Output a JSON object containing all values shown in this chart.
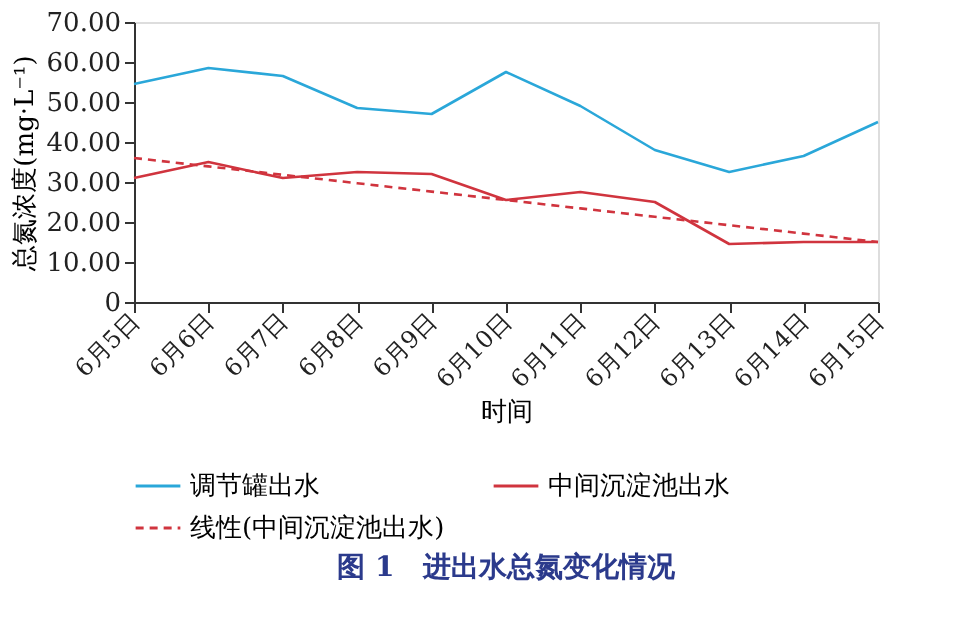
{
  "chart_data": {
    "type": "line",
    "title": "图 1　进出水总氮变化情况",
    "xlabel": "时间",
    "ylabel": "总氮浓度(mg·L⁻¹)",
    "categories": [
      "6月5日",
      "6月6日",
      "6月7日",
      "6月8日",
      "6月9日",
      "6月10日",
      "6月11日",
      "6月12日",
      "6月13日",
      "6月14日",
      "6月15日"
    ],
    "series": [
      {
        "name": "调节罐出水",
        "color": "#2aa7d9",
        "values": [
          54.5,
          58.5,
          56.5,
          48.5,
          47,
          57.5,
          49,
          38,
          32.5,
          36.5,
          45
        ]
      },
      {
        "name": "中间沉淀池出水",
        "color": "#d0343e",
        "values": [
          31,
          35,
          31,
          32.5,
          32,
          25.5,
          27.5,
          25,
          14.5,
          15,
          15
        ]
      },
      {
        "name": "线性(中间沉淀池出水)",
        "color": "#d0343e",
        "type": "line",
        "line_style": "dashed",
        "values": [
          36,
          33.9,
          31.8,
          29.7,
          27.6,
          25.5,
          23.4,
          21.3,
          19.2,
          17.1,
          15
        ]
      }
    ],
    "ylim": [
      0,
      70
    ],
    "yticks": [
      {
        "value": 0,
        "label": "0"
      },
      {
        "value": 10,
        "label": "10.00"
      },
      {
        "value": 20,
        "label": "20.00"
      },
      {
        "value": 30,
        "label": "30.00"
      },
      {
        "value": 40,
        "label": "40.00"
      },
      {
        "value": 50,
        "label": "50.00"
      },
      {
        "value": 60,
        "label": "60.00"
      },
      {
        "value": 70,
        "label": "70.00"
      }
    ],
    "grid": false,
    "legend": "bottom",
    "marker": "none",
    "line_style": "solid"
  }
}
